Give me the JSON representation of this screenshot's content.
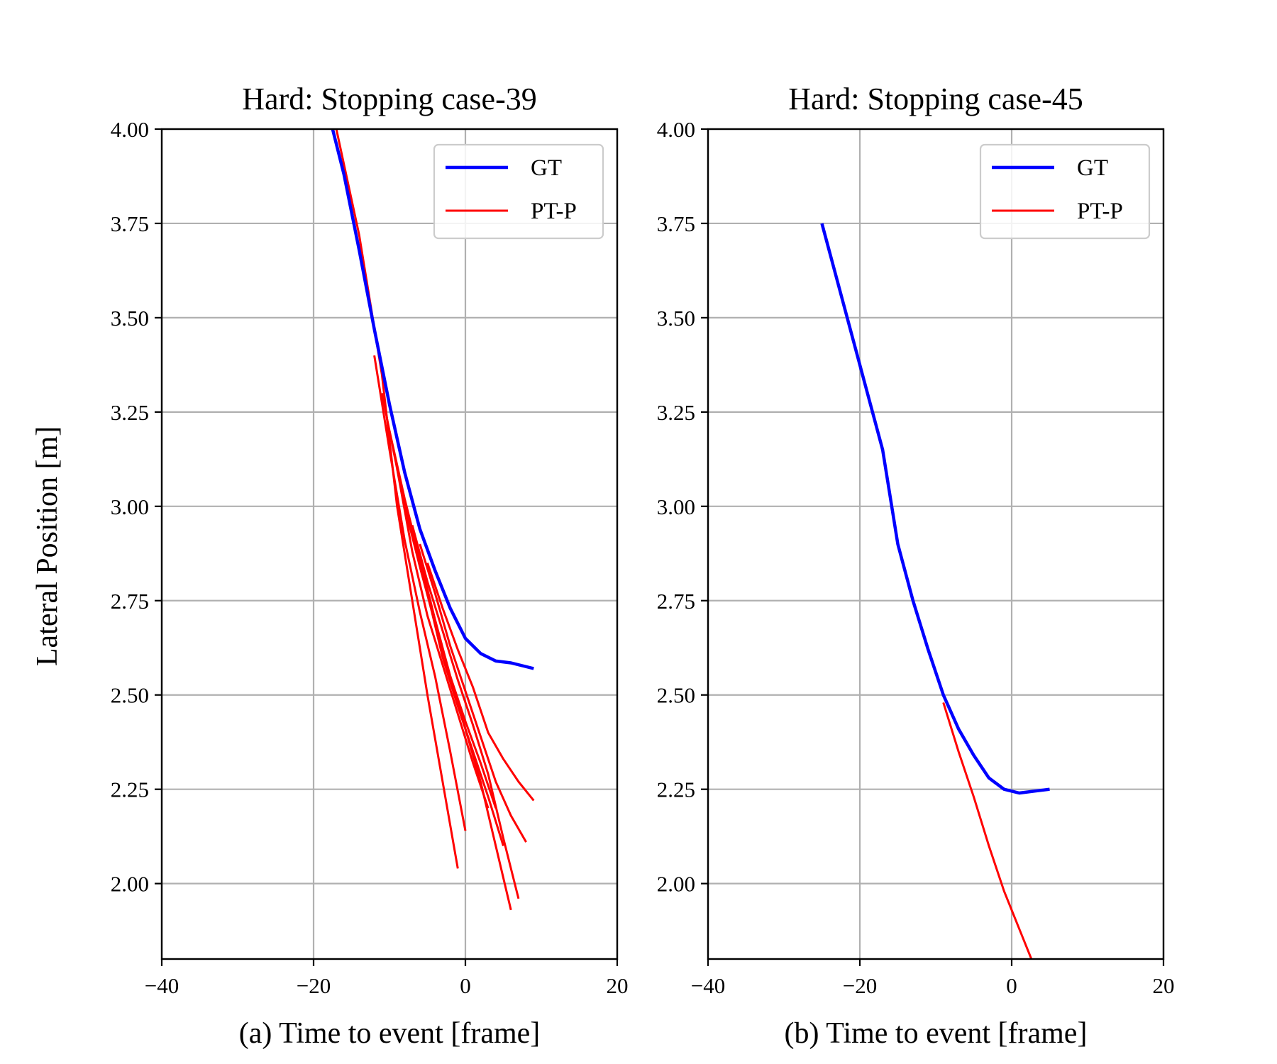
{
  "figure": {
    "ylabel": "Lateral Position [m]"
  },
  "chart_data": [
    {
      "type": "line",
      "title": "Hard: Stopping case-39",
      "xlabel": "(a) Time to event [frame]",
      "ylabel": "Lateral Position [m]",
      "xlim": [
        -40,
        20
      ],
      "ylim": [
        1.8,
        4.0
      ],
      "xticks": [
        -40,
        -20,
        0,
        20
      ],
      "yticks": [
        2.0,
        2.25,
        2.5,
        2.75,
        3.0,
        3.25,
        3.5,
        3.75,
        4.0
      ],
      "xtick_labels": [
        "−40",
        "−20",
        "0",
        "20"
      ],
      "ytick_labels": [
        "2.00",
        "2.25",
        "2.50",
        "2.75",
        "3.00",
        "3.25",
        "3.50",
        "3.75",
        "4.00"
      ],
      "grid": true,
      "legend": "top-right",
      "series": [
        {
          "name": "GT",
          "color": "#0000ff",
          "x": [
            -17.5,
            -16,
            -14,
            -12,
            -10,
            -8,
            -6,
            -4,
            -2,
            0,
            2,
            4,
            6,
            9
          ],
          "y": [
            4.0,
            3.88,
            3.68,
            3.47,
            3.27,
            3.09,
            2.94,
            2.83,
            2.73,
            2.65,
            2.61,
            2.59,
            2.585,
            2.57
          ]
        },
        {
          "name": "PT-P",
          "color": "#ff0000",
          "lines": [
            {
              "x": [
                -17,
                -14,
                -11,
                -9,
                -7,
                -5,
                -3,
                -1
              ],
              "y": [
                4.0,
                3.72,
                3.35,
                3.0,
                2.75,
                2.5,
                2.27,
                2.04
              ]
            },
            {
              "x": [
                -12,
                -10,
                -8,
                -6,
                -4,
                -2,
                0
              ],
              "y": [
                3.4,
                3.15,
                2.91,
                2.72,
                2.55,
                2.35,
                2.14
              ]
            },
            {
              "x": [
                -11,
                -9,
                -7,
                -5,
                -3,
                -1,
                1,
                3
              ],
              "y": [
                3.3,
                3.1,
                2.88,
                2.71,
                2.58,
                2.45,
                2.32,
                2.2
              ]
            },
            {
              "x": [
                -10,
                -8,
                -6,
                -4,
                -2,
                0,
                2,
                4
              ],
              "y": [
                3.2,
                3.02,
                2.86,
                2.7,
                2.55,
                2.43,
                2.32,
                2.2
              ]
            },
            {
              "x": [
                -9,
                -7,
                -5,
                -3,
                -1,
                1,
                3,
                5
              ],
              "y": [
                3.1,
                2.93,
                2.77,
                2.6,
                2.47,
                2.35,
                2.23,
                2.1
              ]
            },
            {
              "x": [
                -8,
                -6,
                -4,
                -2,
                0,
                2,
                4,
                6
              ],
              "y": [
                3.0,
                2.84,
                2.69,
                2.55,
                2.41,
                2.27,
                2.1,
                1.93
              ]
            },
            {
              "x": [
                -7,
                -5,
                -3,
                -1,
                1,
                3,
                5,
                7
              ],
              "y": [
                2.95,
                2.8,
                2.67,
                2.54,
                2.42,
                2.29,
                2.12,
                1.96
              ]
            },
            {
              "x": [
                -6,
                -4,
                -2,
                0,
                2,
                4,
                6,
                8
              ],
              "y": [
                2.9,
                2.77,
                2.63,
                2.51,
                2.39,
                2.27,
                2.18,
                2.11
              ]
            },
            {
              "x": [
                -5,
                -3,
                -1,
                1,
                3,
                5,
                7,
                9
              ],
              "y": [
                2.85,
                2.73,
                2.62,
                2.52,
                2.4,
                2.33,
                2.27,
                2.22
              ]
            }
          ]
        }
      ]
    },
    {
      "type": "line",
      "title": "Hard: Stopping case-45",
      "xlabel": "(b) Time to event [frame]",
      "xlim": [
        -40,
        20
      ],
      "ylim": [
        1.8,
        4.0
      ],
      "xticks": [
        -40,
        -20,
        0,
        20
      ],
      "yticks": [
        2.0,
        2.25,
        2.5,
        2.75,
        3.0,
        3.25,
        3.5,
        3.75,
        4.0
      ],
      "xtick_labels": [
        "−40",
        "−20",
        "0",
        "20"
      ],
      "ytick_labels": [
        "2.00",
        "2.25",
        "2.50",
        "2.75",
        "3.00",
        "3.25",
        "3.50",
        "3.75",
        "4.00"
      ],
      "grid": true,
      "legend": "top-right",
      "series": [
        {
          "name": "GT",
          "color": "#0000ff",
          "x": [
            -25,
            -23,
            -21,
            -19,
            -17,
            -15,
            -13,
            -11,
            -9,
            -7,
            -5,
            -3,
            -1,
            1,
            3,
            5
          ],
          "y": [
            3.75,
            3.6,
            3.45,
            3.3,
            3.15,
            2.9,
            2.75,
            2.62,
            2.5,
            2.41,
            2.34,
            2.28,
            2.25,
            2.24,
            2.245,
            2.25
          ]
        },
        {
          "name": "PT-P",
          "color": "#ff0000",
          "lines": [
            {
              "x": [
                -9,
                -7,
                -5,
                -3,
                -1,
                1,
                3
              ],
              "y": [
                2.48,
                2.35,
                2.23,
                2.1,
                1.98,
                1.88,
                1.78
              ]
            }
          ]
        }
      ]
    }
  ]
}
